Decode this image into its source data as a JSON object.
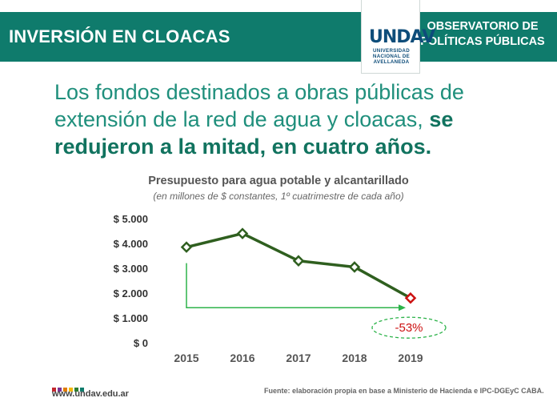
{
  "header": {
    "title": "INVERSIÓN EN CLOACAS",
    "org_line1": "OBSERVATORIO DE",
    "org_line2": "POLÍTICAS PÚBLICAS",
    "logo_text": "UNDAV",
    "logo_sub1": "UNIVERSIDAD",
    "logo_sub2": "NACIONAL DE",
    "logo_sub3": "AVELLANEDA",
    "bar_color": "#0f7b6c"
  },
  "headline": {
    "normal": "Los fondos destinados a obras públicas de extensión de la red de agua y cloacas,",
    "bold": "se redujeron a la mitad, en cuatro años."
  },
  "chart_data": {
    "type": "line",
    "title": "Presupuesto para agua potable y alcantarillado",
    "subtitle": "(en millones de $ constantes, 1º cuatrimestre de cada año)",
    "categories": [
      "2015",
      "2016",
      "2017",
      "2018",
      "2019"
    ],
    "series": [
      {
        "values": [
          3850,
          4400,
          3300,
          3050,
          1800
        ]
      }
    ],
    "y_ticks": [
      "$ 0",
      "$ 1.000",
      "$ 2.000",
      "$ 3.000",
      "$ 4.000",
      "$ 5.000"
    ],
    "ylim": [
      0,
      5000
    ],
    "grid": false,
    "annotation": "-53%",
    "line_color": "#2f5f1f",
    "highlight_color": "#cc1111",
    "arrow_color": "#2db34a"
  },
  "footer": {
    "website": "www.undav.edu.ar",
    "source": "Fuente: elaboración propia en base a Ministerio de Hacienda e IPC-DGEyC CABA."
  }
}
